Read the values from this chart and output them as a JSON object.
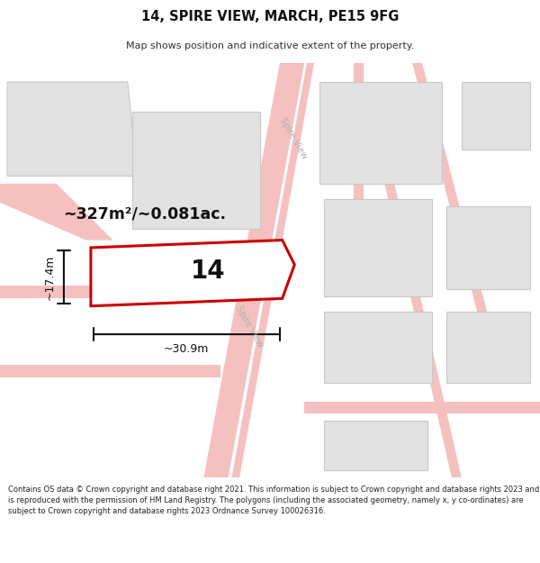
{
  "title": "14, SPIRE VIEW, MARCH, PE15 9FG",
  "subtitle": "Map shows position and indicative extent of the property.",
  "copyright": "Contains OS data © Crown copyright and database right 2021. This information is subject to Crown copyright and database rights 2023 and is reproduced with the permission of HM Land Registry. The polygons (including the associated geometry, namely x, y co-ordinates) are subject to Crown copyright and database rights 2023 Ordnance Survey 100026316.",
  "area_label": "~327m²/~0.081ac.",
  "width_label": "~30.9m",
  "height_label": "~17.4m",
  "plot_number": "14",
  "road_label_top": "Spire View",
  "road_label_bot": "Spire View",
  "bg_color": "#ffffff",
  "road_color": "#f5c0c0",
  "building_color": "#e2e2e2",
  "building_stroke": "#c8c8c8",
  "highlight_color": "#cc0000",
  "dim_color": "#111111",
  "road_label_color": "#b0b0b0"
}
